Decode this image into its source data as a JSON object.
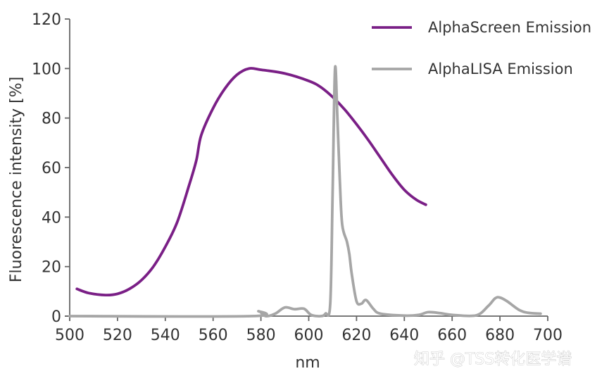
{
  "chart_data": {
    "type": "line",
    "title": "",
    "xlabel": "nm",
    "ylabel": "Fluorescence intensity [%]",
    "xlim": [
      500,
      700
    ],
    "ylim": [
      0,
      120
    ],
    "x_ticks": [
      500,
      520,
      540,
      560,
      580,
      600,
      620,
      640,
      660,
      680,
      700
    ],
    "y_ticks": [
      0,
      20,
      40,
      60,
      80,
      100,
      120
    ],
    "grid": false,
    "legend_position": "top-right",
    "series": [
      {
        "name": "AlphaScreen Emission",
        "color": "#7a1f86",
        "points": [
          [
            503,
            11
          ],
          [
            508,
            9.3
          ],
          [
            515,
            8.5
          ],
          [
            520,
            9
          ],
          [
            525,
            11
          ],
          [
            530,
            14.5
          ],
          [
            535,
            20
          ],
          [
            540,
            28
          ],
          [
            545,
            38
          ],
          [
            550,
            53
          ],
          [
            553,
            63
          ],
          [
            555,
            73
          ],
          [
            560,
            84
          ],
          [
            565,
            92
          ],
          [
            570,
            97.5
          ],
          [
            575,
            100
          ],
          [
            580,
            99.5
          ],
          [
            590,
            98
          ],
          [
            600,
            95
          ],
          [
            605,
            92.5
          ],
          [
            610,
            88.5
          ],
          [
            615,
            83.5
          ],
          [
            620,
            77.5
          ],
          [
            625,
            71
          ],
          [
            630,
            64
          ],
          [
            635,
            57
          ],
          [
            640,
            51
          ],
          [
            645,
            47
          ],
          [
            649,
            45
          ]
        ]
      },
      {
        "name": "AlphaLISA Emission",
        "color": "#a6a6a6",
        "points": [
          [
            500,
            0
          ],
          [
            576,
            0
          ],
          [
            579,
            2
          ],
          [
            582,
            0
          ],
          [
            586,
            1
          ],
          [
            590,
            3.5
          ],
          [
            594,
            2.8
          ],
          [
            598,
            3
          ],
          [
            601,
            0.5
          ],
          [
            605,
            0
          ],
          [
            607,
            1
          ],
          [
            609,
            5
          ],
          [
            610,
            50
          ],
          [
            611,
            100
          ],
          [
            612,
            80
          ],
          [
            613,
            55
          ],
          [
            614,
            37
          ],
          [
            616,
            30
          ],
          [
            617,
            25
          ],
          [
            618,
            17
          ],
          [
            620,
            6
          ],
          [
            622,
            5
          ],
          [
            624,
            6.5
          ],
          [
            627,
            3
          ],
          [
            630,
            1
          ],
          [
            640,
            0.2
          ],
          [
            646,
            0.5
          ],
          [
            650,
            1.6
          ],
          [
            655,
            1.2
          ],
          [
            660,
            0.5
          ],
          [
            670,
            0.3
          ],
          [
            675,
            4
          ],
          [
            678,
            7.2
          ],
          [
            680,
            7.5
          ],
          [
            683,
            6
          ],
          [
            688,
            2.5
          ],
          [
            692,
            1.3
          ],
          [
            697,
            1
          ]
        ]
      }
    ]
  },
  "watermark": "知乎 @TSS转化医学谱"
}
